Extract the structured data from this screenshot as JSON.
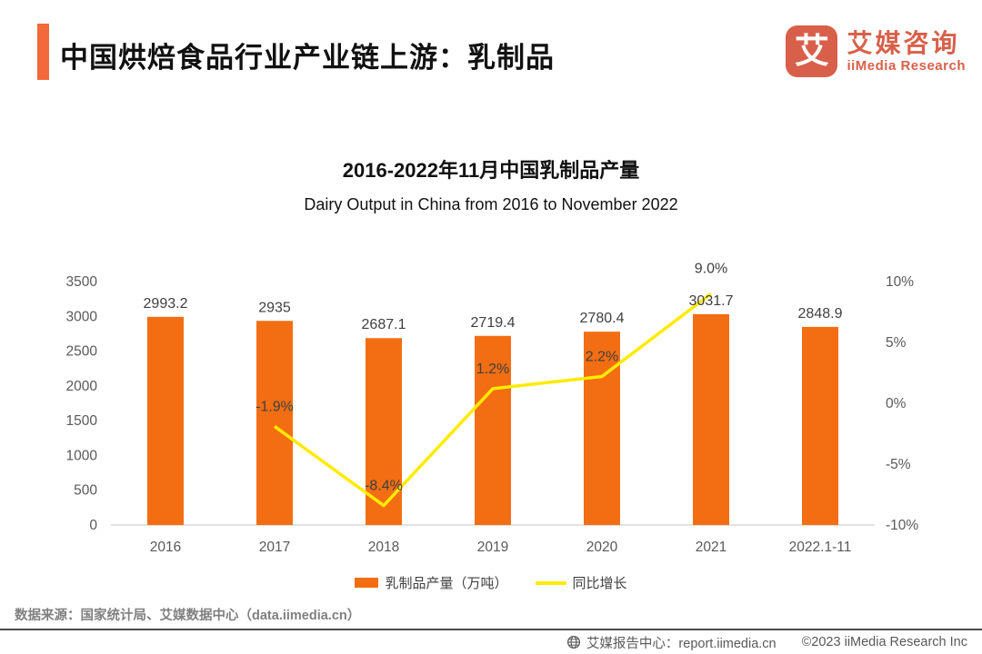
{
  "header": {
    "title": "中国烘焙食品行业产业链上游：乳制品",
    "accent_color": "#F2693C"
  },
  "logo": {
    "glyph": "艾",
    "name_cn": "艾媒咨询",
    "name_en": "iiMedia Research",
    "color": "#D8604A"
  },
  "chart_data": {
    "type": "bar",
    "title": "2016-2022年11月中国乳制品产量",
    "subtitle": "Dairy Output in China from 2016 to November 2022",
    "categories": [
      "2016",
      "2017",
      "2018",
      "2019",
      "2020",
      "2021",
      "2022.1-11"
    ],
    "series": [
      {
        "name": "乳制品产量（万吨）",
        "type": "bar",
        "axis": "left",
        "color": "#F36E12",
        "values": [
          2993.2,
          2935,
          2687.1,
          2719.4,
          2780.4,
          3031.7,
          2848.9
        ],
        "labels": [
          "2993.2",
          "2935",
          "2687.1",
          "2719.4",
          "2780.4",
          "3031.7",
          "2848.9"
        ]
      },
      {
        "name": "同比增长",
        "type": "line",
        "axis": "right",
        "color": "#FFEB00",
        "values": [
          null,
          -1.9,
          -8.4,
          1.2,
          2.2,
          9.0,
          null
        ],
        "labels": [
          null,
          "-1.9%",
          "-8.4%",
          "1.2%",
          "2.2%",
          "9.0%",
          null
        ]
      }
    ],
    "left_axis": {
      "min": 0,
      "max": 3500,
      "step": 500,
      "tick_labels": [
        "0",
        "500",
        "1000",
        "1500",
        "2000",
        "2500",
        "3000",
        "3500"
      ]
    },
    "right_axis": {
      "min": -10,
      "max": 10,
      "step": 5,
      "tick_labels": [
        "-10%",
        "-5%",
        "0%",
        "5%",
        "10%"
      ]
    },
    "grid": false,
    "legend_position": "bottom"
  },
  "footer": {
    "source": "数据来源：国家统计局、艾媒数据中心（data.iimedia.cn）",
    "report_center_label": "艾媒报告中心：report.iimedia.cn",
    "copyright": "©2023 iiMedia Research  Inc"
  }
}
